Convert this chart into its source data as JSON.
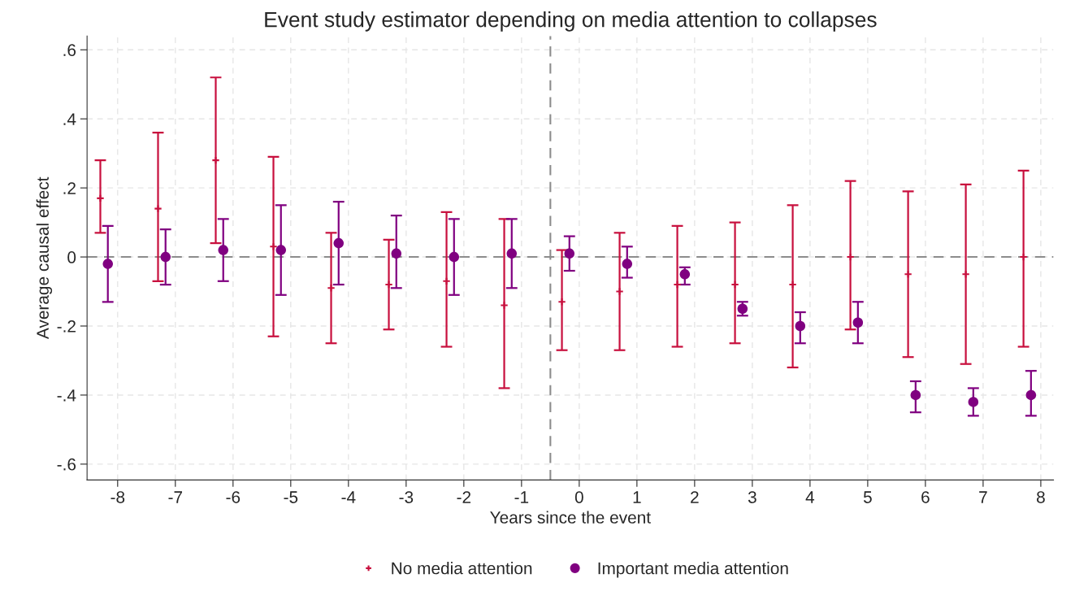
{
  "chart_data": {
    "type": "scatter",
    "title": "Event study estimator depending on media attention to collapses",
    "xlabel": "Years since the event",
    "ylabel": "Average causal effect",
    "xlim": [
      -8.53,
      8.22
    ],
    "ylim": [
      -0.646,
      0.64
    ],
    "xticks": [
      -8,
      -7,
      -6,
      -5,
      -4,
      -3,
      -2,
      -1,
      0,
      1,
      2,
      3,
      4,
      5,
      6,
      7,
      8
    ],
    "yticks": [
      {
        "value": 0.6,
        "label": ".6"
      },
      {
        "value": 0.4,
        "label": ".4"
      },
      {
        "value": 0.2,
        "label": ".2"
      },
      0,
      {
        "value": -0.2,
        "label": "-.2"
      },
      {
        "value": -0.4,
        "label": "-.4"
      },
      {
        "value": -0.6,
        "label": "-.6"
      }
    ],
    "grid": true,
    "legend": "bottom",
    "ref_lines": [
      {
        "axis": "y",
        "value": 0,
        "color": "#8c8c8c",
        "line_style": "dashed"
      },
      {
        "axis": "x",
        "value": -0.5,
        "color": "#8c8c8c",
        "line_style": "dashed"
      }
    ],
    "series": [
      {
        "name": "No media attention",
        "color": "#c8103e",
        "marker": "cross",
        "x": [
          -8.3,
          -7.3,
          -6.3,
          -5.3,
          -4.3,
          -3.3,
          -2.3,
          -1.3,
          -0.3,
          0.7,
          1.7,
          2.7,
          3.7,
          4.7,
          5.7,
          6.7,
          7.7
        ],
        "values": [
          0.17,
          0.14,
          0.28,
          0.03,
          -0.09,
          -0.08,
          -0.07,
          -0.14,
          -0.13,
          -0.1,
          -0.08,
          -0.08,
          -0.08,
          0.0,
          -0.05,
          -0.05,
          0.0
        ],
        "errors": [
          [
            0.07,
            0.28
          ],
          [
            -0.07,
            0.36
          ],
          [
            0.04,
            0.52
          ],
          [
            -0.23,
            0.29
          ],
          [
            -0.25,
            0.07
          ],
          [
            -0.21,
            0.05
          ],
          [
            -0.26,
            0.13
          ],
          [
            -0.38,
            0.11
          ],
          [
            -0.27,
            0.02
          ],
          [
            -0.27,
            0.07
          ],
          [
            -0.26,
            0.09
          ],
          [
            -0.25,
            0.1
          ],
          [
            -0.32,
            0.15
          ],
          [
            -0.21,
            0.22
          ],
          [
            -0.29,
            0.19
          ],
          [
            -0.31,
            0.21
          ],
          [
            -0.26,
            0.25
          ]
        ]
      },
      {
        "name": "Important media attention",
        "color": "#800080",
        "marker": "circle",
        "x": [
          -8.17,
          -7.17,
          -6.17,
          -5.17,
          -4.17,
          -3.17,
          -2.17,
          -1.17,
          -0.17,
          0.83,
          1.83,
          2.83,
          3.83,
          4.83,
          5.83,
          6.83,
          7.83
        ],
        "values": [
          -0.02,
          0.0,
          0.02,
          0.02,
          0.04,
          0.01,
          0.0,
          0.01,
          0.01,
          -0.02,
          -0.05,
          -0.15,
          -0.2,
          -0.19,
          -0.4,
          -0.42,
          -0.4
        ],
        "errors": [
          [
            -0.13,
            0.09
          ],
          [
            -0.08,
            0.08
          ],
          [
            -0.07,
            0.11
          ],
          [
            -0.11,
            0.15
          ],
          [
            -0.08,
            0.16
          ],
          [
            -0.09,
            0.12
          ],
          [
            -0.11,
            0.11
          ],
          [
            -0.09,
            0.11
          ],
          [
            -0.04,
            0.06
          ],
          [
            -0.06,
            0.03
          ],
          [
            -0.08,
            -0.03
          ],
          [
            -0.17,
            -0.13
          ],
          [
            -0.25,
            -0.16
          ],
          [
            -0.25,
            -0.13
          ],
          [
            -0.45,
            -0.36
          ],
          [
            -0.46,
            -0.38
          ],
          [
            -0.46,
            -0.33
          ]
        ]
      }
    ]
  }
}
